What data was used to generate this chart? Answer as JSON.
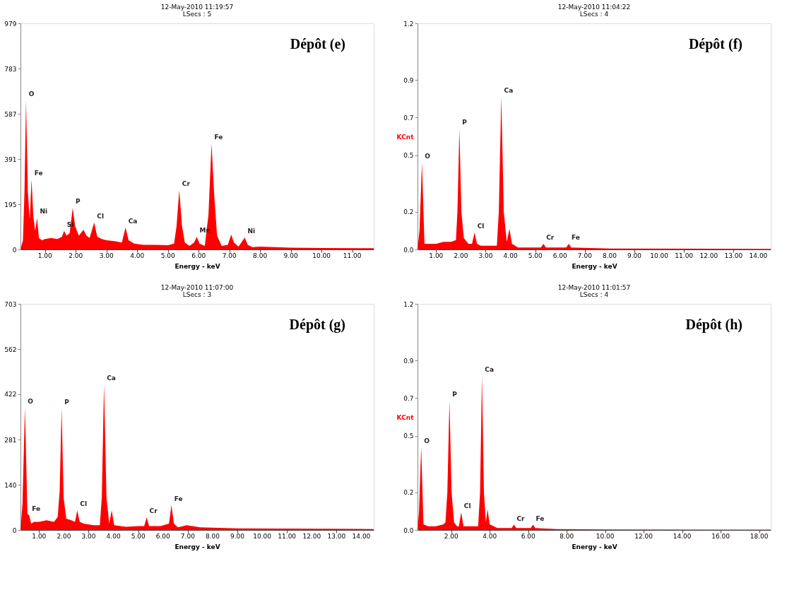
{
  "chart_data": [
    {
      "type": "area",
      "title": "12-May-2010 11:19:57",
      "subtitle": "LSecs :  5",
      "xlabel": "Energy - keV",
      "grid": false,
      "xlim": [
        0.2,
        11.7
      ],
      "xticks": [
        {
          "value": 1,
          "label": "1.00"
        },
        {
          "value": 2,
          "label": "2.00"
        },
        {
          "value": 3,
          "label": "3.00"
        },
        {
          "value": 4,
          "label": "4.00"
        },
        {
          "value": 5,
          "label": "5.00"
        },
        {
          "value": 6,
          "label": "6.00"
        },
        {
          "value": 7,
          "label": "7.00"
        },
        {
          "value": 8,
          "label": "8.00"
        },
        {
          "value": 9,
          "label": "9.00"
        },
        {
          "value": 10,
          "label": "10.00"
        },
        {
          "value": 11,
          "label": "11.00"
        }
      ],
      "ylim": [
        0,
        979
      ],
      "yticks": [
        0,
        195,
        391,
        587,
        783,
        979
      ],
      "x": [
        0.2,
        0.28,
        0.33,
        0.38,
        0.44,
        0.5,
        0.56,
        0.62,
        0.68,
        0.74,
        0.8,
        0.9,
        1.0,
        1.2,
        1.4,
        1.55,
        1.62,
        1.7,
        1.8,
        1.9,
        1.98,
        2.1,
        2.25,
        2.35,
        2.45,
        2.6,
        2.7,
        2.85,
        3.0,
        3.3,
        3.5,
        3.62,
        3.72,
        3.9,
        4.2,
        4.6,
        5.0,
        5.2,
        5.28,
        5.37,
        5.46,
        5.55,
        5.7,
        5.85,
        5.94,
        6.03,
        6.2,
        6.32,
        6.42,
        6.5,
        6.6,
        6.75,
        6.95,
        7.06,
        7.15,
        7.3,
        7.5,
        7.6,
        7.75,
        8.0,
        9.0,
        10.0,
        11.7
      ],
      "series": [
        {
          "color": "#ff0000",
          "values": [
            0,
            40,
            250,
            645,
            250,
            130,
            303,
            140,
            80,
            137,
            50,
            40,
            45,
            50,
            45,
            55,
            80,
            60,
            70,
            180,
            100,
            60,
            85,
            60,
            50,
            116,
            55,
            45,
            40,
            35,
            30,
            95,
            40,
            25,
            20,
            20,
            18,
            25,
            100,
            256,
            100,
            30,
            15,
            30,
            54,
            25,
            15,
            150,
            458,
            250,
            60,
            15,
            20,
            64,
            30,
            12,
            51,
            20,
            10,
            12,
            8,
            6,
            5
          ]
        }
      ],
      "annotations": [
        "Dépôt (e)",
        {
          "text": "O",
          "x": 0.38,
          "y": 645
        },
        {
          "text": "Fe",
          "x": 0.56,
          "y": 303
        },
        {
          "text": "Ni",
          "x": 0.74,
          "y": 137
        },
        {
          "text": "Si",
          "x": 1.62,
          "y": 80
        },
        {
          "text": "P",
          "x": 1.9,
          "y": 180
        },
        {
          "text": "Cl",
          "x": 2.6,
          "y": 116
        },
        {
          "text": "Ca",
          "x": 3.62,
          "y": 95
        },
        {
          "text": "Cr",
          "x": 5.37,
          "y": 256
        },
        {
          "text": "Mn",
          "x": 5.94,
          "y": 54
        },
        {
          "text": "Fe",
          "x": 6.42,
          "y": 458
        },
        {
          "text": "Ni",
          "x": 7.5,
          "y": 51
        }
      ]
    },
    {
      "type": "area",
      "title": "12-May-2010 11:04:22",
      "subtitle": "LSecs :  4",
      "xlabel": "Energy - keV",
      "ylabel": "KCnt",
      "grid": false,
      "xlim": [
        0.25,
        14.5
      ],
      "xticks": [
        {
          "value": 1,
          "label": "1.00"
        },
        {
          "value": 2,
          "label": "2.00"
        },
        {
          "value": 3,
          "label": "3.00"
        },
        {
          "value": 4,
          "label": "4.00"
        },
        {
          "value": 5,
          "label": "5.00"
        },
        {
          "value": 6,
          "label": "6.00"
        },
        {
          "value": 7,
          "label": "7.00"
        },
        {
          "value": 8,
          "label": "8.00"
        },
        {
          "value": 9,
          "label": "9.00"
        },
        {
          "value": 10,
          "label": "10.00"
        },
        {
          "value": 11,
          "label": "11.00"
        },
        {
          "value": 12,
          "label": "12.00"
        },
        {
          "value": 13,
          "label": "13.00"
        },
        {
          "value": 14,
          "label": "14.00"
        }
      ],
      "ylim": [
        0,
        1.2
      ],
      "yticks": [
        {
          "value": 0,
          "label": "0.0"
        },
        0.2,
        0.5,
        0.7,
        0.9,
        1.2
      ],
      "x": [
        0.25,
        0.33,
        0.43,
        0.53,
        0.7,
        1.0,
        1.3,
        1.6,
        1.8,
        1.86,
        1.94,
        2.02,
        2.12,
        2.3,
        2.45,
        2.55,
        2.65,
        2.8,
        3.2,
        3.45,
        3.53,
        3.63,
        3.73,
        3.85,
        3.96,
        4.06,
        4.3,
        5.0,
        5.23,
        5.33,
        5.43,
        6.0,
        6.25,
        6.35,
        6.45,
        8.0,
        14.5
      ],
      "series": [
        {
          "color": "#ff0000",
          "values": [
            0,
            0.1,
            0.46,
            0.03,
            0.03,
            0.03,
            0.04,
            0.04,
            0.05,
            0.2,
            0.64,
            0.2,
            0.06,
            0.03,
            0.03,
            0.09,
            0.03,
            0.02,
            0.02,
            0.02,
            0.2,
            0.81,
            0.2,
            0.04,
            0.11,
            0.03,
            0.01,
            0.01,
            0.01,
            0.03,
            0.01,
            0.01,
            0.01,
            0.03,
            0.01,
            0.005,
            0.003
          ]
        }
      ],
      "annotations": [
        "Dépôt (f)",
        {
          "text": "O",
          "x": 0.43,
          "y": 0.46
        },
        {
          "text": "P",
          "x": 1.94,
          "y": 0.64
        },
        {
          "text": "Cl",
          "x": 2.55,
          "y": 0.09
        },
        {
          "text": "Ca",
          "x": 3.63,
          "y": 0.81
        },
        {
          "text": "Cr",
          "x": 5.33,
          "y": 0.03
        },
        {
          "text": "Fe",
          "x": 6.35,
          "y": 0.03
        }
      ]
    },
    {
      "type": "area",
      "title": "12-May-2010 11:07:00",
      "subtitle": "LSecs :  3",
      "xlabel": "Energy - keV",
      "grid": false,
      "xlim": [
        0.25,
        14.5
      ],
      "xticks": [
        {
          "value": 1,
          "label": "1.00"
        },
        {
          "value": 2,
          "label": "2.00"
        },
        {
          "value": 3,
          "label": "3.00"
        },
        {
          "value": 4,
          "label": "4.00"
        },
        {
          "value": 5,
          "label": "5.00"
        },
        {
          "value": 6,
          "label": "6.00"
        },
        {
          "value": 7,
          "label": "7.00"
        },
        {
          "value": 8,
          "label": "8.00"
        },
        {
          "value": 9,
          "label": "9.00"
        },
        {
          "value": 10,
          "label": "10.00"
        },
        {
          "value": 11,
          "label": "11.00"
        },
        {
          "value": 12,
          "label": "12.00"
        },
        {
          "value": 13,
          "label": "13.00"
        },
        {
          "value": 14,
          "label": "14.00"
        }
      ],
      "ylim": [
        0,
        703
      ],
      "yticks": [
        0,
        140,
        281,
        422,
        562,
        703
      ],
      "x": [
        0.25,
        0.33,
        0.43,
        0.53,
        0.6,
        0.68,
        0.8,
        1.0,
        1.3,
        1.6,
        1.75,
        1.83,
        1.91,
        1.99,
        2.1,
        2.3,
        2.45,
        2.54,
        2.64,
        2.8,
        3.2,
        3.45,
        3.53,
        3.62,
        3.72,
        3.83,
        3.93,
        4.03,
        4.5,
        5.0,
        5.24,
        5.34,
        5.44,
        5.9,
        6.24,
        6.34,
        6.44,
        6.6,
        6.95,
        7.5,
        9.0,
        14.5
      ],
      "series": [
        {
          "color": "#ff0000",
          "values": [
            0,
            80,
            381,
            50,
            46,
            20,
            25,
            25,
            30,
            25,
            40,
            120,
            378,
            100,
            35,
            30,
            25,
            61,
            25,
            20,
            15,
            15,
            100,
            452,
            100,
            20,
            61,
            15,
            10,
            12,
            12,
            39,
            12,
            12,
            20,
            77,
            20,
            8,
            15,
            8,
            5,
            3
          ]
        }
      ],
      "annotations": [
        "Dépôt (g)",
        {
          "text": "O",
          "x": 0.43,
          "y": 381
        },
        {
          "text": "Fe",
          "x": 0.6,
          "y": 46
        },
        {
          "text": "P",
          "x": 1.91,
          "y": 378
        },
        {
          "text": "Cl",
          "x": 2.54,
          "y": 61
        },
        {
          "text": "Ca",
          "x": 3.62,
          "y": 452
        },
        {
          "text": "Cr",
          "x": 5.34,
          "y": 39
        },
        {
          "text": "Fe",
          "x": 6.34,
          "y": 77
        }
      ]
    },
    {
      "type": "area",
      "title": "12-May-2010 11:01:57",
      "subtitle": "LSecs :  4",
      "xlabel": "Energy - keV",
      "ylabel": "KCnt",
      "grid": false,
      "xlim": [
        0.25,
        18.6
      ],
      "xticks": [
        {
          "value": 2,
          "label": "2.00"
        },
        {
          "value": 4,
          "label": "4.00"
        },
        {
          "value": 6,
          "label": "6.00"
        },
        {
          "value": 8,
          "label": "8.00"
        },
        {
          "value": 10,
          "label": "10.00"
        },
        {
          "value": 12,
          "label": "12.00"
        },
        {
          "value": 14,
          "label": "14.00"
        },
        {
          "value": 16,
          "label": "16.00"
        },
        {
          "value": 18,
          "label": "18.00"
        }
      ],
      "ylim": [
        0,
        1.2
      ],
      "yticks": [
        {
          "value": 0,
          "label": "0.0"
        },
        0.2,
        0.5,
        0.7,
        0.9,
        1.2
      ],
      "x": [
        0.25,
        0.33,
        0.44,
        0.56,
        0.8,
        1.2,
        1.6,
        1.7,
        1.8,
        1.91,
        2.02,
        2.15,
        2.3,
        2.4,
        2.52,
        2.64,
        2.9,
        3.3,
        3.4,
        3.5,
        3.6,
        3.7,
        3.8,
        3.89,
        4.0,
        4.4,
        5.0,
        5.14,
        5.26,
        5.38,
        6.0,
        6.13,
        6.25,
        6.37,
        7.5,
        10.0,
        18.6
      ],
      "series": [
        {
          "color": "#ff0000",
          "values": [
            0,
            0.1,
            0.44,
            0.03,
            0.02,
            0.02,
            0.03,
            0.04,
            0.2,
            0.685,
            0.2,
            0.04,
            0.02,
            0.02,
            0.094,
            0.02,
            0.02,
            0.02,
            0.02,
            0.2,
            0.816,
            0.2,
            0.04,
            0.11,
            0.03,
            0.01,
            0.01,
            0.01,
            0.028,
            0.01,
            0.01,
            0.01,
            0.028,
            0.01,
            0.005,
            0.003,
            0.002
          ]
        }
      ],
      "annotations": [
        "Dépôt (h)",
        {
          "text": "O",
          "x": 0.44,
          "y": 0.44
        },
        {
          "text": "P",
          "x": 1.91,
          "y": 0.685
        },
        {
          "text": "Cl",
          "x": 2.52,
          "y": 0.094
        },
        {
          "text": "Ca",
          "x": 3.6,
          "y": 0.816
        },
        {
          "text": "Cr",
          "x": 5.26,
          "y": 0.028
        },
        {
          "text": "Fe",
          "x": 6.25,
          "y": 0.028
        }
      ]
    }
  ]
}
